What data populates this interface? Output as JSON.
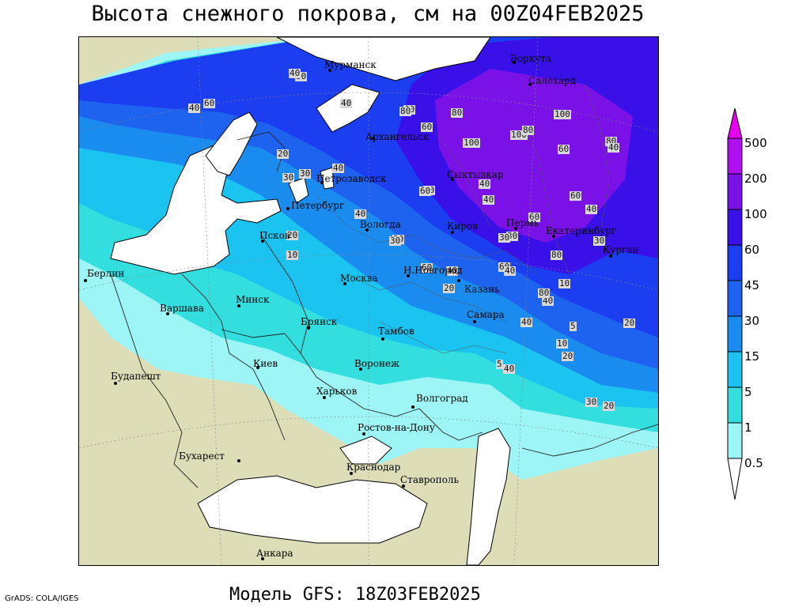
{
  "title": "Высота снежного покрова, см на 00Z04FEB2025",
  "subtitle": "Модель GFS: 18Z03FEB2025",
  "credit": "GrADS: COLA/IGES",
  "colors": {
    "land": "#ddddb8",
    "water": "#ffffff",
    "snow_0_5": "#9ef5f5",
    "snow_1": "#33dede",
    "snow_5": "#1ac3f0",
    "snow_15": "#1a8cf0",
    "snow_30": "#1e63f0",
    "snow_45": "#1a3ef0",
    "snow_60": "#3a10e8",
    "snow_100": "#7a12e8",
    "snow_200": "#b010f0",
    "snow_500": "#e800f0"
  },
  "legend": {
    "ticks": [
      "500",
      "200",
      "100",
      "60",
      "45",
      "30",
      "15",
      "5",
      "1",
      "0.5"
    ]
  },
  "cities": [
    {
      "name": "Мурманск"
    },
    {
      "name": "Воркута"
    },
    {
      "name": "Салехард"
    },
    {
      "name": "Архангельск"
    },
    {
      "name": "Сыктывкар"
    },
    {
      "name": "Петрозаводск"
    },
    {
      "name": "Петербург"
    },
    {
      "name": "Вологда"
    },
    {
      "name": "Киров"
    },
    {
      "name": "Пермь"
    },
    {
      "name": "Екатеринбург"
    },
    {
      "name": "Курган"
    },
    {
      "name": "Псков"
    },
    {
      "name": "Москва"
    },
    {
      "name": "Н.Новгород"
    },
    {
      "name": "Казань"
    },
    {
      "name": "Берлин"
    },
    {
      "name": "Варшава"
    },
    {
      "name": "Минск"
    },
    {
      "name": "Брянск"
    },
    {
      "name": "Тамбов"
    },
    {
      "name": "Самара"
    },
    {
      "name": "Киев"
    },
    {
      "name": "Воронеж"
    },
    {
      "name": "Харьков"
    },
    {
      "name": "Волгоград"
    },
    {
      "name": "Будапешт"
    },
    {
      "name": "Ростов-на-Дону"
    },
    {
      "name": "Бухарест"
    },
    {
      "name": "Краснодар"
    },
    {
      "name": "Ставрополь"
    },
    {
      "name": "Анкара"
    }
  ],
  "contour_labels": [
    "40",
    "60",
    "80",
    "40",
    "60",
    "40",
    "80",
    "60",
    "80",
    "100",
    "100",
    "80",
    "60",
    "30",
    "20",
    "30",
    "40",
    "60",
    "80",
    "40",
    "100",
    "60",
    "40",
    "60",
    "40",
    "30",
    "40",
    "60",
    "80",
    "60",
    "40",
    "30",
    "20",
    "10",
    "30",
    "40",
    "60",
    "40",
    "80",
    "30",
    "20",
    "10",
    "40",
    "5",
    "40",
    "30",
    "20",
    "10",
    "20",
    "5",
    "30",
    "20",
    "40"
  ]
}
